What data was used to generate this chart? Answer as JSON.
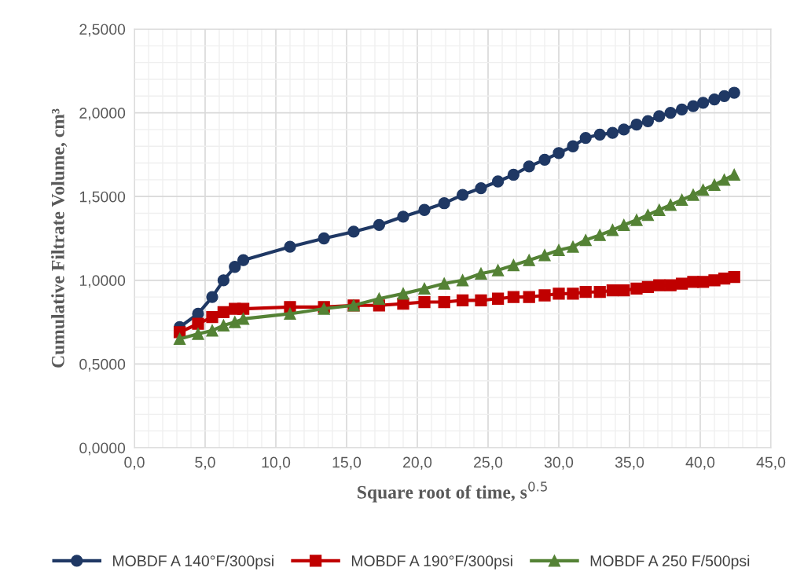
{
  "chart_data": {
    "type": "line",
    "xlabel": "Square root of time, s$^{0.5}$",
    "ylabel": "Cumulative Filtrate Volume, cm³",
    "x": [
      3.2,
      4.5,
      5.5,
      6.3,
      7.1,
      7.7,
      11.0,
      13.4,
      15.5,
      17.3,
      19.0,
      20.5,
      21.9,
      23.2,
      24.5,
      25.7,
      26.8,
      27.9,
      29.0,
      30.0,
      31.0,
      31.9,
      32.9,
      33.8,
      34.6,
      35.5,
      36.3,
      37.1,
      37.9,
      38.7,
      39.5,
      40.2,
      41.0,
      41.7,
      42.4
    ],
    "series": [
      {
        "name": "MOBDF A 140°F/300psi",
        "color": "#1f3864",
        "marker": "circle",
        "values": [
          0.72,
          0.8,
          0.9,
          1.0,
          1.08,
          1.12,
          1.2,
          1.25,
          1.29,
          1.33,
          1.38,
          1.42,
          1.46,
          1.51,
          1.55,
          1.59,
          1.63,
          1.68,
          1.72,
          1.76,
          1.8,
          1.85,
          1.87,
          1.88,
          1.9,
          1.93,
          1.95,
          1.98,
          2.0,
          2.02,
          2.04,
          2.06,
          2.08,
          2.1,
          2.12
        ]
      },
      {
        "name": "MOBDF A 190°F/300psi",
        "color": "#c00000",
        "marker": "square",
        "values": [
          0.69,
          0.74,
          0.78,
          0.81,
          0.83,
          0.83,
          0.84,
          0.84,
          0.85,
          0.85,
          0.86,
          0.87,
          0.87,
          0.88,
          0.88,
          0.89,
          0.9,
          0.9,
          0.91,
          0.92,
          0.92,
          0.93,
          0.93,
          0.94,
          0.94,
          0.95,
          0.96,
          0.97,
          0.97,
          0.98,
          0.99,
          0.99,
          1.0,
          1.01,
          1.02
        ]
      },
      {
        "name": "MOBDF A 250 F/500psi",
        "color": "#548235",
        "marker": "triangle",
        "values": [
          0.65,
          0.68,
          0.7,
          0.73,
          0.75,
          0.77,
          0.8,
          0.83,
          0.85,
          0.89,
          0.92,
          0.95,
          0.98,
          1.0,
          1.04,
          1.06,
          1.09,
          1.12,
          1.15,
          1.18,
          1.2,
          1.24,
          1.27,
          1.3,
          1.33,
          1.36,
          1.39,
          1.42,
          1.45,
          1.48,
          1.51,
          1.54,
          1.57,
          1.6,
          1.63
        ]
      }
    ],
    "xlim": [
      0,
      45
    ],
    "xticks": [
      {
        "value": 0,
        "label": "0,0"
      },
      {
        "value": 5,
        "label": "5,0"
      },
      {
        "value": 10,
        "label": "10,0"
      },
      {
        "value": 15,
        "label": "15,0"
      },
      {
        "value": 20,
        "label": "20,0"
      },
      {
        "value": 25,
        "label": "25,0"
      },
      {
        "value": 30,
        "label": "30,0"
      },
      {
        "value": 35,
        "label": "35,0"
      },
      {
        "value": 40,
        "label": "40,0"
      },
      {
        "value": 45,
        "label": "45,0"
      }
    ],
    "ylim": [
      0,
      2.5
    ],
    "yticks": [
      {
        "value": 0,
        "label": "0,0000"
      },
      {
        "value": 0.5,
        "label": "0,5000"
      },
      {
        "value": 1.0,
        "label": "1,0000"
      },
      {
        "value": 1.5,
        "label": "1,5000"
      },
      {
        "value": 2.0,
        "label": "2,0000"
      },
      {
        "value": 2.5,
        "label": "2,5000"
      }
    ],
    "grid": true,
    "legend": "bottom",
    "line_style": "solid"
  }
}
